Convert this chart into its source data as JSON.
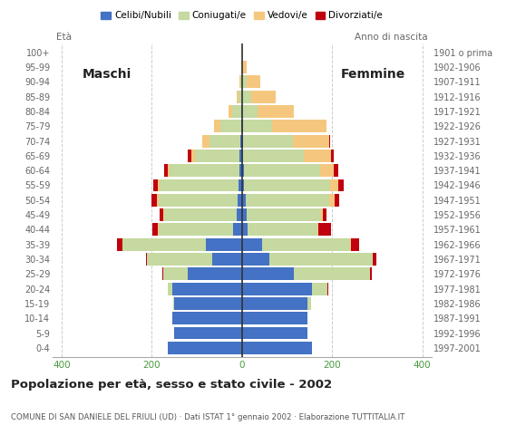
{
  "age_groups": [
    "0-4",
    "5-9",
    "10-14",
    "15-19",
    "20-24",
    "25-29",
    "30-34",
    "35-39",
    "40-44",
    "45-49",
    "50-54",
    "55-59",
    "60-64",
    "65-69",
    "70-74",
    "75-79",
    "80-84",
    "85-89",
    "90-94",
    "95-99",
    "100+"
  ],
  "birth_years": [
    "1997-2001",
    "1992-1996",
    "1987-1991",
    "1982-1986",
    "1977-1981",
    "1972-1976",
    "1967-1971",
    "1962-1966",
    "1957-1961",
    "1952-1956",
    "1947-1951",
    "1942-1946",
    "1937-1941",
    "1932-1936",
    "1927-1931",
    "1922-1926",
    "1917-1921",
    "1912-1916",
    "1907-1911",
    "1902-1906",
    "1901 o prima"
  ],
  "males": {
    "celibe": [
      165,
      150,
      155,
      150,
      155,
      120,
      65,
      80,
      20,
      12,
      10,
      8,
      5,
      5,
      3,
      2,
      1,
      0,
      0,
      0,
      0
    ],
    "coniugato": [
      0,
      0,
      0,
      2,
      10,
      55,
      145,
      185,
      165,
      160,
      175,
      175,
      155,
      100,
      70,
      45,
      20,
      8,
      3,
      0,
      0
    ],
    "vedovo": [
      0,
      0,
      0,
      0,
      0,
      0,
      0,
      1,
      1,
      2,
      3,
      4,
      5,
      8,
      15,
      15,
      8,
      4,
      2,
      1,
      0
    ],
    "divorziato": [
      0,
      0,
      0,
      0,
      0,
      1,
      3,
      12,
      12,
      8,
      12,
      10,
      8,
      8,
      0,
      0,
      0,
      0,
      0,
      0,
      0
    ]
  },
  "females": {
    "nubile": [
      155,
      145,
      145,
      145,
      155,
      115,
      60,
      45,
      12,
      10,
      8,
      5,
      4,
      3,
      3,
      2,
      0,
      0,
      0,
      0,
      0
    ],
    "coniugata": [
      0,
      0,
      1,
      8,
      35,
      170,
      230,
      195,
      155,
      165,
      185,
      190,
      170,
      135,
      110,
      65,
      35,
      20,
      10,
      3,
      0
    ],
    "vedova": [
      0,
      0,
      0,
      0,
      0,
      0,
      1,
      2,
      3,
      5,
      12,
      18,
      30,
      60,
      80,
      120,
      80,
      55,
      30,
      8,
      2
    ],
    "divorziata": [
      0,
      0,
      0,
      0,
      1,
      3,
      8,
      18,
      28,
      8,
      10,
      12,
      10,
      5,
      3,
      0,
      0,
      0,
      0,
      0,
      0
    ]
  },
  "color_celibe": "#4472c4",
  "color_coniugato": "#c5d9a0",
  "color_vedovo": "#f5c77e",
  "color_divorziato": "#c0000e",
  "title": "Popolazione per età, sesso e stato civile - 2002",
  "subtitle": "COMUNE DI SAN DANIELE DEL FRIULI (UD) · Dati ISTAT 1° gennaio 2002 · Elaborazione TUTTITALIA.IT",
  "label_maschi": "Maschi",
  "label_femmine": "Femmine",
  "legend_celibe": "Celibi/Nubili",
  "legend_coniugato": "Coniugati/e",
  "legend_vedovo": "Vedovi/e",
  "legend_divorziato": "Divorziati/e",
  "xlim": 420,
  "background": "#ffffff",
  "grid_color": "#cccccc"
}
